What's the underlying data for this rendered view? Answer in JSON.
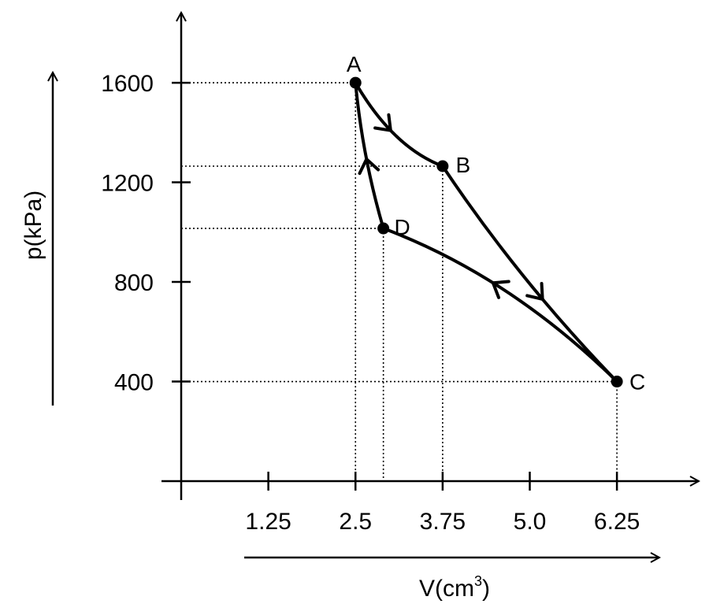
{
  "axes": {
    "y_title": "p(kPa)",
    "x_title_main": "V(cm",
    "x_title_sup": "3",
    "x_title_close": ")",
    "y_ticks": [
      {
        "label": "1600",
        "value": 1600
      },
      {
        "label": "1200",
        "value": 1200
      },
      {
        "label": "800",
        "value": 800
      },
      {
        "label": "400",
        "value": 400
      }
    ],
    "x_ticks": [
      {
        "label": "1.25",
        "value": 1.25
      },
      {
        "label": "2.5",
        "value": 2.5
      },
      {
        "label": "3.75",
        "value": 3.75
      },
      {
        "label": "5.0",
        "value": 5.0
      },
      {
        "label": "6.25",
        "value": 6.25
      }
    ]
  },
  "points": [
    {
      "name": "A",
      "v": 2.5,
      "p": 1600
    },
    {
      "name": "B",
      "v": 3.75,
      "p": 1265
    },
    {
      "name": "C",
      "v": 6.25,
      "p": 400
    },
    {
      "name": "D",
      "v": 2.9,
      "p": 1015
    }
  ],
  "processes": [
    {
      "from": "A",
      "to": "B"
    },
    {
      "from": "B",
      "to": "C"
    },
    {
      "from": "C",
      "to": "D"
    },
    {
      "from": "D",
      "to": "A"
    }
  ]
}
